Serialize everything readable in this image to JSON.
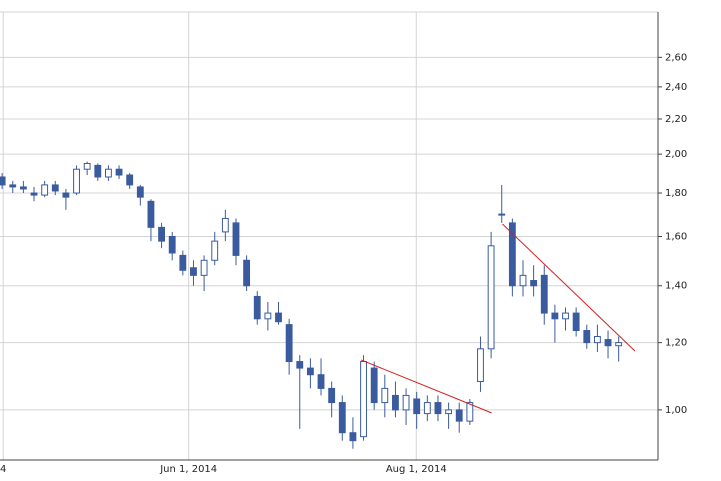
{
  "chart_data": {
    "type": "candlestick",
    "x": [
      0,
      1,
      2,
      3,
      4,
      5,
      6,
      7,
      8,
      9,
      10,
      11,
      12,
      13,
      14,
      15,
      16,
      17,
      18,
      19,
      20,
      21,
      22,
      23,
      24,
      25,
      26,
      27,
      28,
      29,
      30,
      31,
      32,
      33,
      34,
      35,
      36,
      37,
      38,
      39,
      40,
      41,
      42,
      43,
      44,
      45,
      46,
      47,
      48,
      49,
      50,
      51,
      52,
      53,
      54,
      55,
      56,
      57,
      58
    ],
    "open": [
      1.88,
      1.84,
      1.83,
      1.8,
      1.79,
      1.84,
      1.8,
      1.8,
      1.92,
      1.94,
      1.88,
      1.92,
      1.89,
      1.83,
      1.76,
      1.64,
      1.6,
      1.52,
      1.47,
      1.44,
      1.5,
      1.62,
      1.66,
      1.5,
      1.36,
      1.28,
      1.3,
      1.26,
      1.14,
      1.12,
      1.1,
      1.06,
      1.02,
      0.94,
      0.93,
      1.12,
      1.02,
      1.04,
      1.0,
      1.03,
      0.99,
      1.02,
      0.99,
      1.0,
      0.97,
      1.08,
      1.18,
      1.7,
      1.66,
      1.4,
      1.42,
      1.44,
      1.3,
      1.28,
      1.3,
      1.24,
      1.2,
      1.21,
      1.19
    ],
    "high": [
      1.9,
      1.86,
      1.86,
      1.83,
      1.86,
      1.86,
      1.82,
      1.94,
      1.96,
      1.95,
      1.94,
      1.94,
      1.9,
      1.84,
      1.77,
      1.66,
      1.62,
      1.54,
      1.5,
      1.52,
      1.62,
      1.72,
      1.68,
      1.52,
      1.38,
      1.34,
      1.34,
      1.28,
      1.16,
      1.15,
      1.15,
      1.08,
      1.04,
      0.98,
      1.16,
      1.14,
      1.1,
      1.08,
      1.06,
      1.05,
      1.04,
      1.04,
      1.02,
      1.02,
      1.03,
      1.22,
      1.62,
      1.84,
      1.68,
      1.5,
      1.48,
      1.48,
      1.33,
      1.32,
      1.32,
      1.26,
      1.26,
      1.24,
      1.22
    ],
    "low": [
      1.82,
      1.8,
      1.8,
      1.76,
      1.78,
      1.79,
      1.72,
      1.79,
      1.89,
      1.86,
      1.86,
      1.87,
      1.82,
      1.74,
      1.58,
      1.55,
      1.5,
      1.44,
      1.4,
      1.38,
      1.48,
      1.58,
      1.48,
      1.38,
      1.26,
      1.24,
      1.26,
      1.1,
      0.95,
      1.06,
      1.04,
      0.98,
      0.92,
      0.9,
      0.92,
      1.0,
      0.98,
      0.98,
      0.96,
      0.95,
      0.97,
      0.97,
      0.95,
      0.94,
      0.96,
      1.05,
      1.15,
      1.66,
      1.36,
      1.36,
      1.36,
      1.26,
      1.2,
      1.24,
      1.22,
      1.18,
      1.17,
      1.15,
      1.14
    ],
    "close": [
      1.84,
      1.83,
      1.82,
      1.79,
      1.84,
      1.81,
      1.78,
      1.92,
      1.95,
      1.88,
      1.92,
      1.89,
      1.84,
      1.78,
      1.64,
      1.58,
      1.53,
      1.46,
      1.44,
      1.5,
      1.58,
      1.68,
      1.52,
      1.4,
      1.28,
      1.3,
      1.27,
      1.14,
      1.12,
      1.1,
      1.06,
      1.02,
      0.94,
      0.92,
      1.14,
      1.02,
      1.06,
      1.0,
      1.04,
      0.99,
      1.02,
      0.99,
      1.0,
      0.97,
      1.02,
      1.18,
      1.56,
      1.7,
      1.4,
      1.44,
      1.4,
      1.3,
      1.28,
      1.3,
      1.24,
      1.2,
      1.22,
      1.19,
      1.2
    ],
    "up_color": "#ffffff",
    "down_color": "#3b5b9f",
    "edge_color": "#3b5b9f",
    "xlim": [
      -0.2,
      61.7
    ],
    "xticks": [
      {
        "value": 0.1,
        "label": "4"
      },
      {
        "value": 17.55,
        "label": "Jun 1, 2014"
      },
      {
        "value": 38.96,
        "label": "Aug 1, 2014"
      }
    ],
    "ylim": [
      0.873,
      2.94
    ],
    "log_y": true,
    "grid": true,
    "yticks": [
      {
        "value": 1.0,
        "label": "1,00"
      },
      {
        "value": 1.2,
        "label": "1,20"
      },
      {
        "value": 1.4,
        "label": "1,40"
      },
      {
        "value": 1.6,
        "label": "1,60"
      },
      {
        "value": 1.8,
        "label": "1,80"
      },
      {
        "value": 2.0,
        "label": "2,00"
      },
      {
        "value": 2.2,
        "label": "2,20"
      },
      {
        "value": 2.4,
        "label": "2,40"
      },
      {
        "value": 2.6,
        "label": "2,60"
      }
    ],
    "trendline_color": "#d42020",
    "trendlines": [
      {
        "x": [
          33.77,
          46.04
        ],
        "y": [
          1.145,
          0.992
        ]
      },
      {
        "x": [
          47.07,
          59.53
        ],
        "y": [
          1.655,
          1.173
        ]
      }
    ]
  }
}
